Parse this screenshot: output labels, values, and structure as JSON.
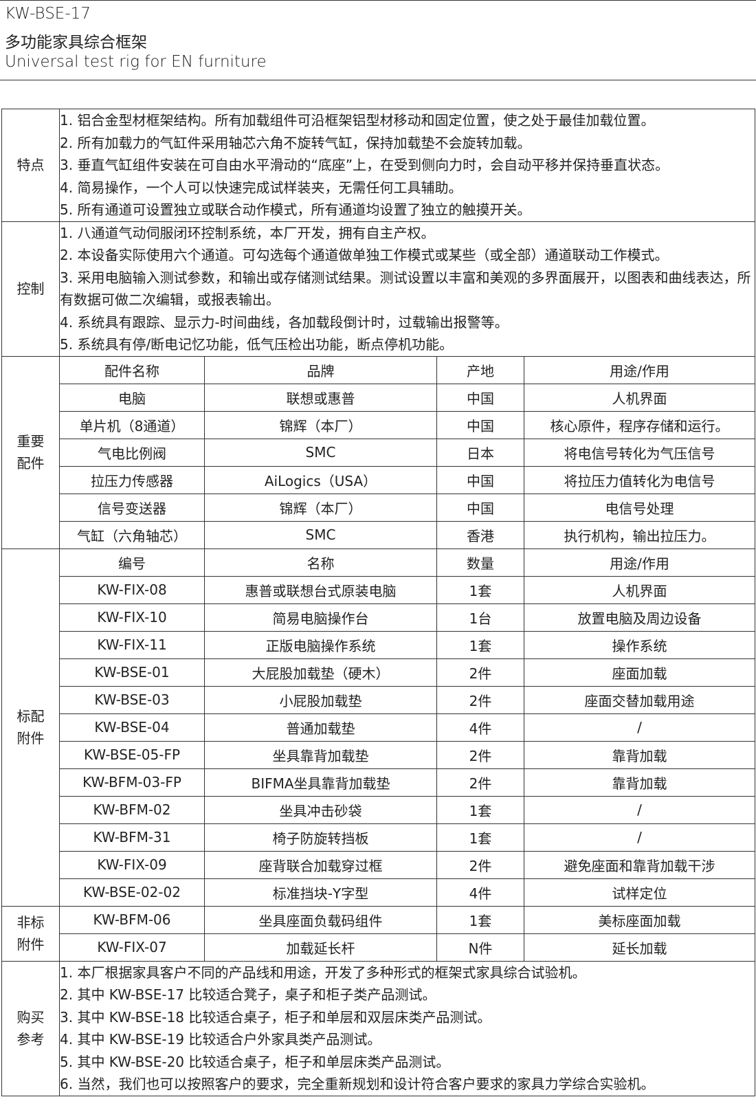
{
  "header": {
    "model": "KW-BSE-17",
    "title_cn": "多功能家具综合框架",
    "title_en": "Universal test rig for EN furniture"
  },
  "sections": [
    {
      "label": "特点",
      "items": [
        "1. 铝合金型材框架结构。所有加载组件可沿框架铝型材移动和固定位置，使之处于最佳加载位置。",
        "2. 所有加载力的气缸件采用轴芯六角不旋转气缸，保持加载垫不会旋转加载。",
        "3. 垂直气缸组件安装在可自由水平滑动的“底座”上，在受到侧向力时，会自动平移并保持垂直状态。",
        "4. 简易操作，一个人可以快速完成试样装夹，无需任何工具辅助。",
        "5. 所有通道可设置独立或联合动作模式，所有通道均设置了独立的触摸开关。"
      ]
    },
    {
      "label": "控制",
      "items": [
        "1. 八通道气动伺服闭环控制系统，本厂开发，拥有自主产权。",
        "2. 本设备实际使用六个通道。可勾选每个通道做单独工作模式或某些（或全部）通道联动工作模式。",
        "3. 采用电脑输入测试参数，和输出或存储测试结果。测试设置以丰富和美观的多界面展开，以图表和曲线表达，所有数据可做二次编辑，或报表输出。",
        "4. 系统具有跟踪、显示力-时间曲线，各加载段倒计时，过载输出报警等。",
        "5. 系统具有停/断电记忆功能，低气压检出功能，断点停机功能。"
      ]
    },
    {
      "label": "重要配件",
      "table": {
        "columns": [
          "配件名称",
          "品牌",
          "产地",
          "用途/作用"
        ],
        "rows": [
          [
            "电脑",
            "联想或惠普",
            "中国",
            "人机界面"
          ],
          [
            "单片机（8通道）",
            "锦辉（本厂）",
            "中国",
            "核心原件，程序存储和运行。"
          ],
          [
            "气电比例阀",
            "SMC",
            "日本",
            "将电信号转化为气压信号"
          ],
          [
            "拉压力传感器",
            "AiLogics（USA）",
            "中国",
            "将拉压力值转化为电信号"
          ],
          [
            "信号变送器",
            "锦辉（本厂）",
            "中国",
            "电信号处理"
          ],
          [
            "气缸（六角轴芯）",
            "SMC",
            "香港",
            "执行机构，输出拉压力。"
          ]
        ]
      }
    },
    {
      "label": "标配附件",
      "table": {
        "columns": [
          "编号",
          "名称",
          "数量",
          "用途/作用"
        ],
        "rows": [
          [
            "KW-FIX-08",
            "惠普或联想台式原装电脑",
            "1套",
            "人机界面"
          ],
          [
            "KW-FIX-10",
            "简易电脑操作台",
            "1台",
            "放置电脑及周边设备"
          ],
          [
            "KW-FIX-11",
            "正版电脑操作系统",
            "1套",
            "操作系统"
          ],
          [
            "KW-BSE-01",
            "大屁股加载垫（硬木）",
            "2件",
            "座面加载"
          ],
          [
            "KW-BSE-03",
            "小屁股加载垫",
            "2件",
            "座面交替加载用途"
          ],
          [
            "KW-BSE-04",
            "普通加载垫",
            "4件",
            "/"
          ],
          [
            "KW-BSE-05-FP",
            "坐具靠背加载垫",
            "2件",
            "靠背加载"
          ],
          [
            "KW-BFM-03-FP",
            "BIFMA坐具靠背加载垫",
            "2件",
            "靠背加载"
          ],
          [
            "KW-BFM-02",
            "坐具冲击砂袋",
            "1套",
            "/"
          ],
          [
            "KW-BFM-31",
            "椅子防旋转挡板",
            "1套",
            "/"
          ],
          [
            "KW-FIX-09",
            "座背联合加载穿过框",
            "2件",
            "避免座面和靠背加载干涉"
          ],
          [
            "KW-BSE-02-02",
            "标准挡块-Y字型",
            "4件",
            "试样定位"
          ]
        ]
      }
    },
    {
      "label": "非标附件",
      "table": {
        "rows": [
          [
            "KW-BFM-06",
            "坐具座面负载码组件",
            "1套",
            "美标座面加载"
          ],
          [
            "KW-FIX-07",
            "加载延长杆",
            "N件",
            "延长加载"
          ]
        ]
      }
    },
    {
      "label": "购买参考",
      "items": [
        "1. 本厂根据家具客户不同的产品线和用途，开发了多种形式的框架式家具综合试验机。",
        "2. 其中 KW-BSE-17 比较适合凳子，桌子和柜子类产品测试。",
        "3. 其中 KW-BSE-18 比较适合桌子，柜子和单层和双层床类产品测试。",
        "4. 其中 KW-BSE-19 比较适合户外家具类产品测试。",
        "5. 其中 KW-BSE-20 比较适合桌子，柜子和单层床类产品测试。",
        "6. 当然，我们也可以按照客户的要求，完全重新规划和设计符合客户要求的家具力学综合实验机。"
      ]
    }
  ]
}
